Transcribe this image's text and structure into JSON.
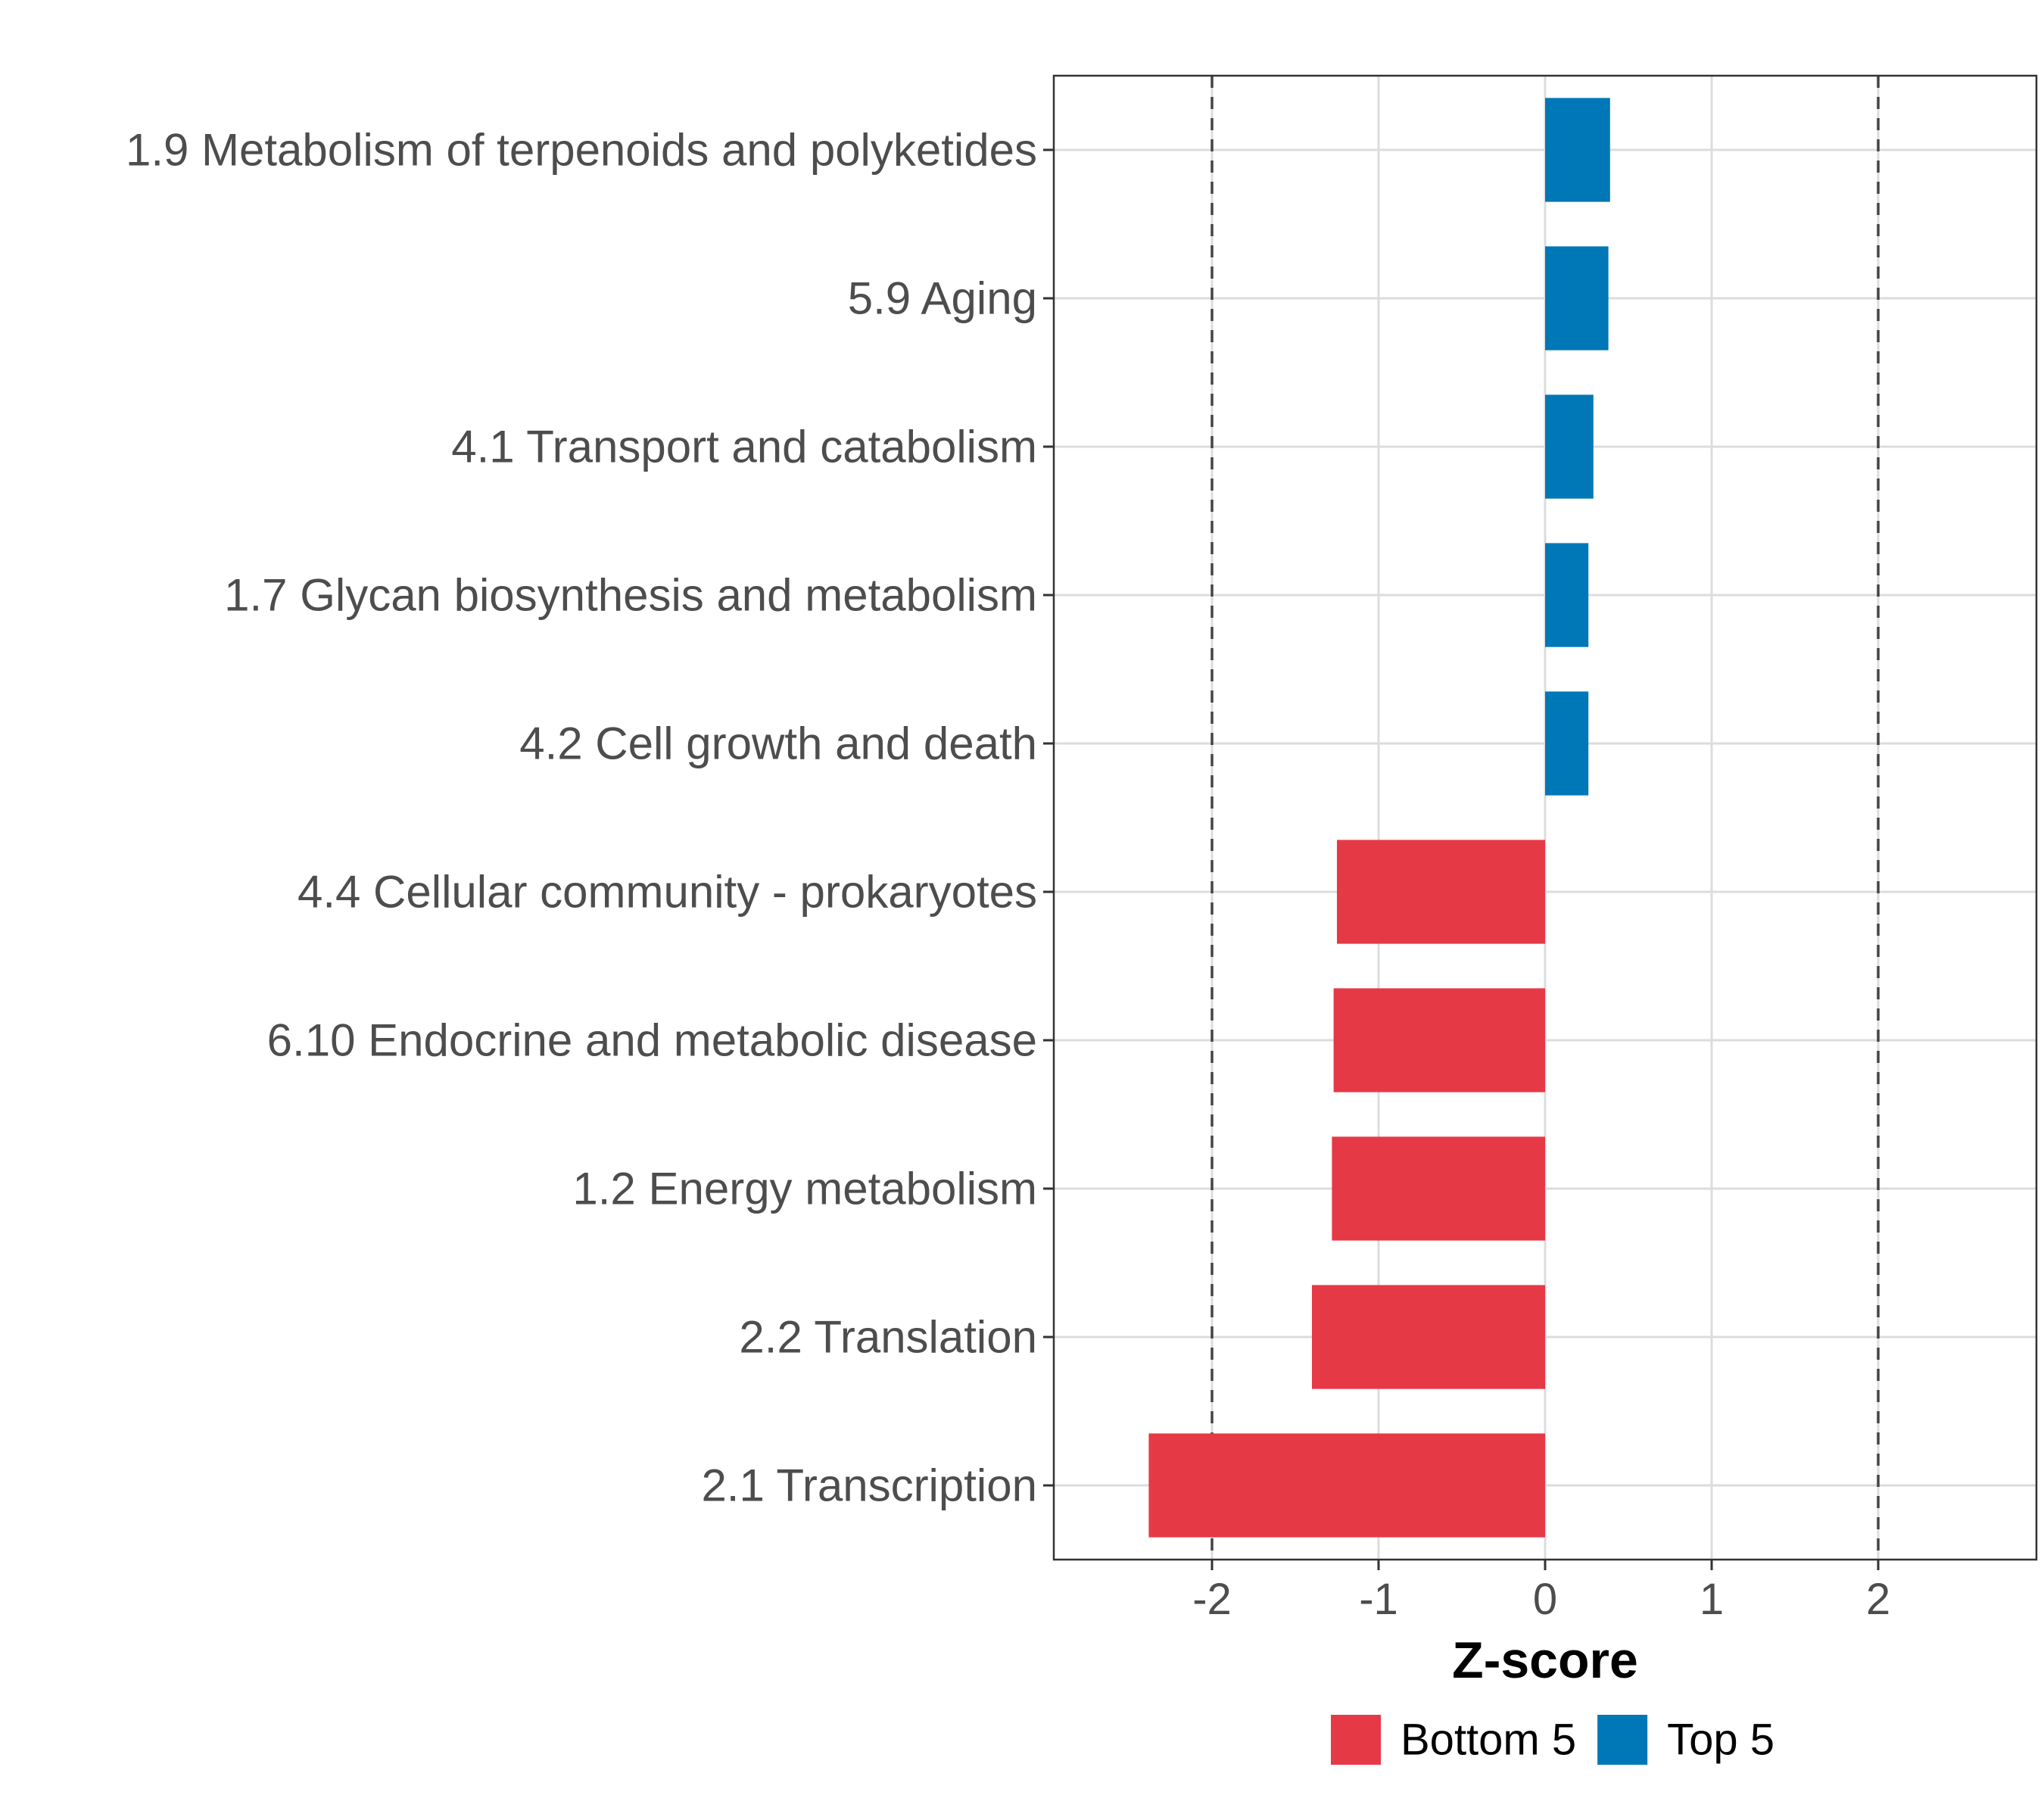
{
  "chart_data": {
    "type": "bar",
    "orientation": "horizontal",
    "categories": [
      "1.9 Metabolism of terpenoids and polyketides",
      "5.9 Aging",
      "4.1 Transport and catabolism",
      "1.7 Glycan biosynthesis and metabolism",
      "4.2 Cell growth and death",
      "4.4 Cellular community - prokaryotes",
      "6.10 Endocrine and metabolic disease",
      "1.2 Energy metabolism",
      "2.2 Translation",
      "2.1 Transcription"
    ],
    "values": [
      0.39,
      0.38,
      0.29,
      0.26,
      0.26,
      -1.25,
      -1.27,
      -1.28,
      -1.4,
      -2.38
    ],
    "groups": [
      "Top 5",
      "Top 5",
      "Top 5",
      "Top 5",
      "Top 5",
      "Bottom 5",
      "Bottom 5",
      "Bottom 5",
      "Bottom 5",
      "Bottom 5"
    ],
    "title": "",
    "xlabel": "Z-score",
    "ylabel": "",
    "xlim": [
      -2.95,
      2.95
    ],
    "xticks": [
      -2,
      -1,
      0,
      1,
      2
    ],
    "xtick_labels": [
      "-2",
      "-1",
      "0",
      "1",
      "2"
    ],
    "reference_lines": [
      -2,
      2
    ],
    "grid": true,
    "legend": {
      "position": "bottom",
      "entries": [
        {
          "label": "Bottom 5",
          "color": "#E63946"
        },
        {
          "label": "Top 5",
          "color": "#0077B6"
        }
      ]
    },
    "colors": {
      "Bottom 5": "#E63946",
      "Top 5": "#0077B6"
    }
  }
}
